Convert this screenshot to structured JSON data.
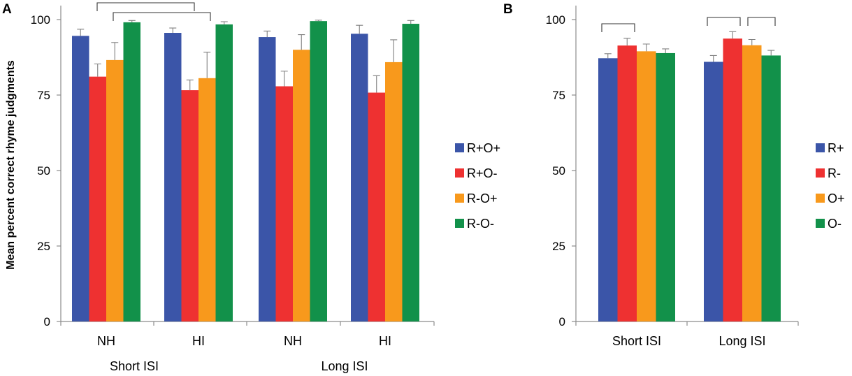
{
  "colors": {
    "series1": "#3b55a8",
    "series2": "#ee3131",
    "series3": "#f8991c",
    "series4": "#12914a",
    "axis": "#8c8c8c"
  },
  "chart_data": [
    {
      "panel": "A",
      "type": "bar",
      "ylabel": "Mean percent correct rhyme judgments",
      "ylim": [
        0,
        100
      ],
      "yticks": [
        0,
        25,
        50,
        75,
        100
      ],
      "categories": [
        "NH",
        "HI",
        "NH",
        "HI"
      ],
      "groups": [
        "Short ISI",
        "Long ISI"
      ],
      "series": [
        {
          "name": "R+O+",
          "values": [
            94.6,
            95.6,
            94.2,
            95.3
          ],
          "errors": [
            2.2,
            1.6,
            2.0,
            2.8
          ]
        },
        {
          "name": "R+O-",
          "values": [
            81.1,
            76.6,
            77.9,
            75.8
          ],
          "errors": [
            4.2,
            3.4,
            5.0,
            5.6
          ]
        },
        {
          "name": "R-O+",
          "values": [
            86.6,
            80.6,
            90.0,
            85.9
          ],
          "errors": [
            5.8,
            8.6,
            5.0,
            7.4
          ]
        },
        {
          "name": "R-O-",
          "values": [
            99.1,
            98.4,
            99.5,
            98.6
          ],
          "errors": [
            0.6,
            0.9,
            0.3,
            1.1
          ]
        }
      ]
    },
    {
      "panel": "B",
      "type": "bar",
      "ylabel": "",
      "ylim": [
        0,
        100
      ],
      "yticks": [
        0,
        25,
        50,
        75,
        100
      ],
      "categories": [
        "Short ISI",
        "Long ISI"
      ],
      "series": [
        {
          "name": "R+",
          "values": [
            87.2,
            86.0
          ],
          "errors": [
            1.5,
            2.1
          ]
        },
        {
          "name": "R-",
          "values": [
            91.4,
            93.7
          ],
          "errors": [
            2.4,
            2.3
          ]
        },
        {
          "name": "O+",
          "values": [
            89.5,
            91.5
          ],
          "errors": [
            2.4,
            1.9
          ]
        },
        {
          "name": "O-",
          "values": [
            88.9,
            88.1
          ],
          "errors": [
            1.4,
            1.7
          ]
        }
      ]
    }
  ]
}
